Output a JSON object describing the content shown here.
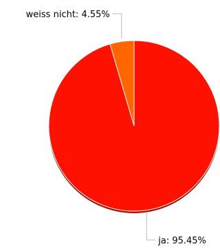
{
  "chart_data": {
    "type": "pie",
    "title": "",
    "slices": [
      {
        "label": "ja",
        "value": 95.45,
        "display": "ja: 95.45%",
        "color": "#ff1100"
      },
      {
        "label": "weiss nicht",
        "value": 4.55,
        "display": "weiss nicht: 4.55%",
        "color": "#ff6600"
      }
    ],
    "start_angle": "12 o'clock",
    "direction": "clockwise",
    "legend": "none",
    "slice_border_color": "#ffffff",
    "shadow_color": "#b00c00"
  }
}
